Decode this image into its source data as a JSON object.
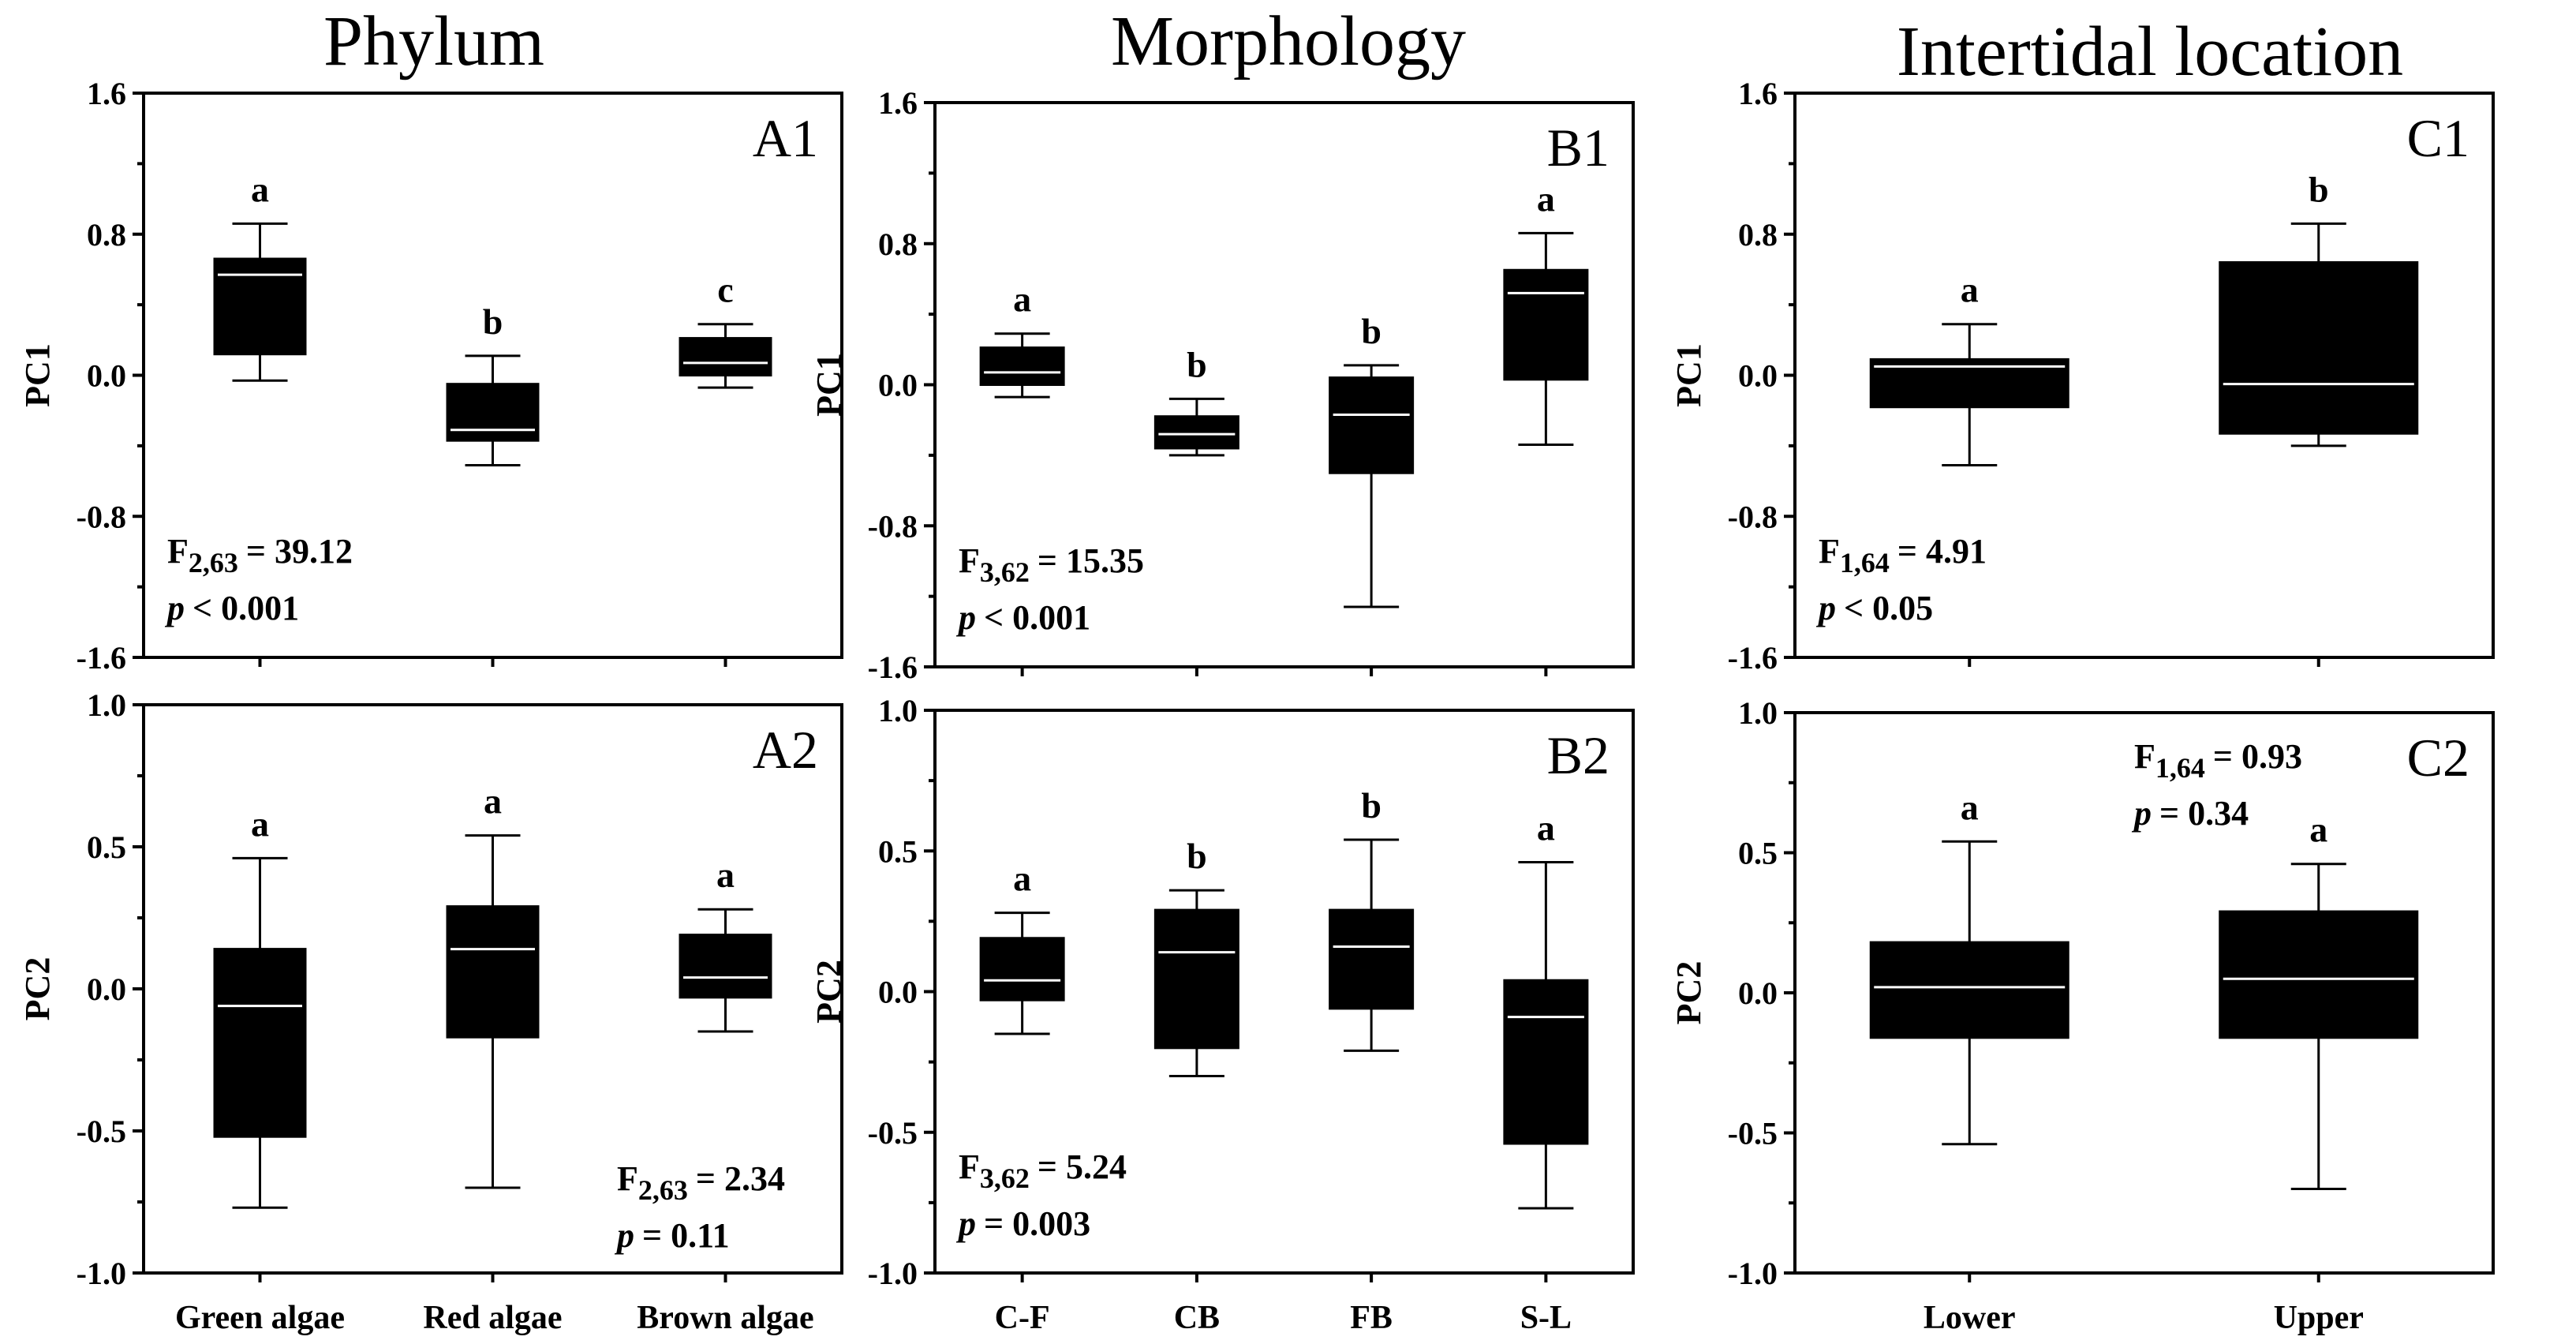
{
  "colors": {
    "box_fill": "#000000",
    "median_line": "#ffffff",
    "background": "#ffffff",
    "frame": "#000000"
  },
  "column_titles": [
    "Phylum",
    "Morphology",
    "Intertidal location"
  ],
  "chart_data": [
    {
      "id": "A1",
      "type": "box",
      "ylabel": "PC1",
      "ylim": [
        -1.6,
        1.6
      ],
      "yticks": [
        "1.6",
        "0.8",
        "0.0",
        "-0.8",
        "-1.6"
      ],
      "categories": [
        "Green algae",
        "Red algae",
        "Brown algae"
      ],
      "boxes": [
        {
          "category": "Green algae",
          "min": -0.03,
          "q1": 0.12,
          "median": 0.57,
          "q3": 0.66,
          "max": 0.86,
          "letter": "a"
        },
        {
          "category": "Red algae",
          "min": -0.51,
          "q1": -0.37,
          "median": -0.31,
          "q3": -0.05,
          "max": 0.11,
          "letter": "b"
        },
        {
          "category": "Brown algae",
          "min": -0.07,
          "q1": 0.0,
          "median": 0.07,
          "q3": 0.21,
          "max": 0.29,
          "letter": "c"
        }
      ],
      "stats": {
        "label": "F",
        "df": "2,63",
        "value": "= 39.12",
        "p_symbol": "p",
        "p_text": "< 0.001",
        "position": "bottom-left"
      }
    },
    {
      "id": "B1",
      "type": "box",
      "ylabel": "PC1",
      "ylim": [
        -1.6,
        1.6
      ],
      "yticks": [
        "1.6",
        "0.8",
        "0.0",
        "-0.8",
        "-1.6"
      ],
      "categories": [
        "C-F",
        "CB",
        "FB",
        "S-L"
      ],
      "boxes": [
        {
          "category": "C-F",
          "min": -0.07,
          "q1": 0.0,
          "median": 0.07,
          "q3": 0.21,
          "max": 0.29,
          "letter": "a"
        },
        {
          "category": "CB",
          "min": -0.4,
          "q1": -0.36,
          "median": -0.28,
          "q3": -0.18,
          "max": -0.08,
          "letter": "b"
        },
        {
          "category": "FB",
          "min": -1.26,
          "q1": -0.5,
          "median": -0.17,
          "q3": 0.04,
          "max": 0.11,
          "letter": "b"
        },
        {
          "category": "S-L",
          "min": -0.34,
          "q1": 0.03,
          "median": 0.52,
          "q3": 0.65,
          "max": 0.86,
          "letter": "a"
        }
      ],
      "stats": {
        "label": "F",
        "df": "3,62",
        "value": "= 15.35",
        "p_symbol": "p",
        "p_text": "< 0.001",
        "position": "bottom-left"
      }
    },
    {
      "id": "C1",
      "type": "box",
      "ylabel": "PC1",
      "ylim": [
        -1.6,
        1.6
      ],
      "yticks": [
        "1.6",
        "0.8",
        "0.0",
        "-0.8",
        "-1.6"
      ],
      "categories": [
        "Lower",
        "Upper"
      ],
      "boxes": [
        {
          "category": "Lower",
          "min": -0.51,
          "q1": -0.18,
          "median": 0.05,
          "q3": 0.09,
          "max": 0.29,
          "letter": "a"
        },
        {
          "category": "Upper",
          "min": -0.4,
          "q1": -0.33,
          "median": -0.05,
          "q3": 0.64,
          "max": 0.86,
          "letter": "b"
        }
      ],
      "stats": {
        "label": "F",
        "df": "1,64",
        "value": "= 4.91",
        "p_symbol": "p",
        "p_text": "< 0.05",
        "position": "bottom-left"
      }
    },
    {
      "id": "A2",
      "type": "box",
      "ylabel": "PC2",
      "ylim": [
        -1.0,
        1.0
      ],
      "yticks": [
        "1.0",
        "0.5",
        "0.0",
        "-0.5",
        "-1.0"
      ],
      "categories": [
        "Green algae",
        "Red algae",
        "Brown algae"
      ],
      "boxes": [
        {
          "category": "Green algae",
          "min": -0.77,
          "q1": -0.52,
          "median": -0.06,
          "q3": 0.14,
          "max": 0.46,
          "letter": "a"
        },
        {
          "category": "Red algae",
          "min": -0.7,
          "q1": -0.17,
          "median": 0.14,
          "q3": 0.29,
          "max": 0.54,
          "letter": "a"
        },
        {
          "category": "Brown algae",
          "min": -0.15,
          "q1": -0.03,
          "median": 0.04,
          "q3": 0.19,
          "max": 0.28,
          "letter": "a"
        }
      ],
      "stats": {
        "label": "F",
        "df": "2,63",
        "value": "= 2.34",
        "p_symbol": "p",
        "p_text": "= 0.11",
        "position": "bottom-right"
      }
    },
    {
      "id": "B2",
      "type": "box",
      "ylabel": "PC2",
      "ylim": [
        -1.0,
        1.0
      ],
      "yticks": [
        "1.0",
        "0.5",
        "0.0",
        "-0.5",
        "-1.0"
      ],
      "categories": [
        "C-F",
        "CB",
        "FB",
        "S-L"
      ],
      "boxes": [
        {
          "category": "C-F",
          "min": -0.15,
          "q1": -0.03,
          "median": 0.04,
          "q3": 0.19,
          "max": 0.28,
          "letter": "a"
        },
        {
          "category": "CB",
          "min": -0.3,
          "q1": -0.2,
          "median": 0.14,
          "q3": 0.29,
          "max": 0.36,
          "letter": "b"
        },
        {
          "category": "FB",
          "min": -0.21,
          "q1": -0.06,
          "median": 0.16,
          "q3": 0.29,
          "max": 0.54,
          "letter": "b"
        },
        {
          "category": "S-L",
          "min": -0.77,
          "q1": -0.54,
          "median": -0.09,
          "q3": 0.04,
          "max": 0.46,
          "letter": "a"
        }
      ],
      "stats": {
        "label": "F",
        "df": "3,62",
        "value": "= 5.24",
        "p_symbol": "p",
        "p_text": "= 0.003",
        "position": "bottom-left"
      }
    },
    {
      "id": "C2",
      "type": "box",
      "ylabel": "PC2",
      "ylim": [
        -1.0,
        1.0
      ],
      "yticks": [
        "1.0",
        "0.5",
        "0.0",
        "-0.5",
        "-1.0"
      ],
      "categories": [
        "Lower",
        "Upper"
      ],
      "boxes": [
        {
          "category": "Lower",
          "min": -0.54,
          "q1": -0.16,
          "median": 0.02,
          "q3": 0.18,
          "max": 0.54,
          "letter": "a"
        },
        {
          "category": "Upper",
          "min": -0.7,
          "q1": -0.16,
          "median": 0.05,
          "q3": 0.29,
          "max": 0.46,
          "letter": "a"
        }
      ],
      "stats": {
        "label": "F",
        "df": "1,64",
        "value": "= 0.93",
        "p_symbol": "p",
        "p_text": "= 0.34",
        "position": "top-center"
      }
    }
  ]
}
